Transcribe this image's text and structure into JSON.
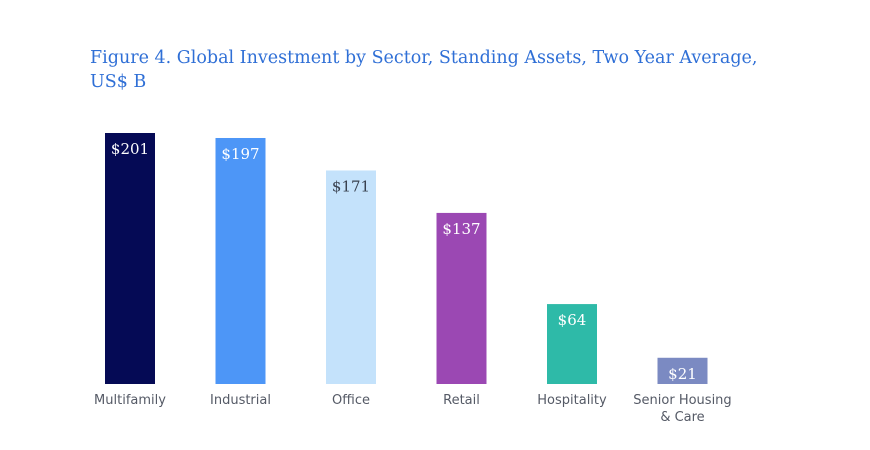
{
  "chart_data": {
    "type": "bar",
    "title": "Figure 4. Global Investment by Sector, Standing Assets, Two Year Average, US$ B",
    "categories": [
      "Multifamily",
      "Industrial",
      "Office",
      "Retail",
      "Hospitality",
      "Senior Housing & Care"
    ],
    "category_lines": [
      [
        "Multifamily"
      ],
      [
        "Industrial"
      ],
      [
        "Office"
      ],
      [
        "Retail"
      ],
      [
        "Hospitality"
      ],
      [
        "Senior Housing",
        "& Care"
      ]
    ],
    "values": [
      201,
      197,
      171,
      137,
      64,
      21
    ],
    "value_labels": [
      "$201",
      "$197",
      "$171",
      "$137",
      "$64",
      "$21"
    ],
    "colors": [
      "#050a55",
      "#4d96f7",
      "#c4e2fb",
      "#9b48b3",
      "#2ebaa8",
      "#7b8ac2"
    ],
    "label_colors": [
      "#ffffff",
      "#ffffff",
      "#39414f",
      "#ffffff",
      "#ffffff",
      "#ffffff"
    ],
    "ylim": [
      0,
      201
    ],
    "grid": false,
    "xlabel": "",
    "ylabel": ""
  }
}
